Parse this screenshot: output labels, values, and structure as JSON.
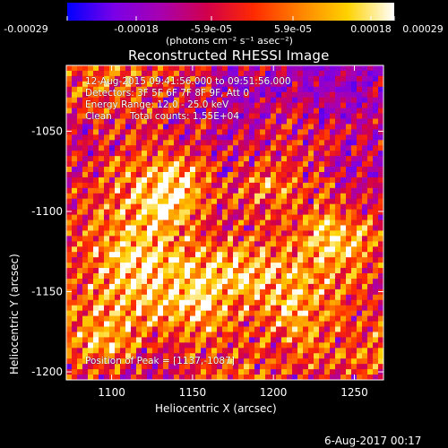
{
  "colorbar": {
    "colors": [
      "#0000ff",
      "#7a00e8",
      "#a800b0",
      "#d1004a",
      "#ff2a00",
      "#ff8400",
      "#ffd200",
      "#ffffff"
    ],
    "tick_labels": [
      "-0.00029",
      "-0.00018",
      "-5.9e-05",
      "5.9e-05",
      "0.00018",
      "0.00029"
    ],
    "units_label": "(photons cm⁻² s⁻¹ asec⁻²)"
  },
  "chart_data": {
    "type": "heatmap",
    "title": "Reconstructed RHESSI Image",
    "xlabel": "Heliocentric X (arcsec)",
    "ylabel": "Heliocentric Y (arcsec)",
    "xlim": [
      1072,
      1268
    ],
    "ylim": [
      -1205,
      -1009
    ],
    "xticks": [
      1100,
      1150,
      1200,
      1250
    ],
    "yticks": [
      -1050,
      -1100,
      -1150,
      -1200
    ],
    "annotations": [
      "12-Aug-2015 09:41:56.000 to 09:51:56.000",
      "Detectors: 3F 5F 6F 7F 8F 9F, Att 0",
      "Energy Range: 12.0 - 25.0 keV",
      "Clean",
      "Total counts: 1.55E+04"
    ],
    "peak_label": "Position of Peak = [1137,-1087]",
    "peak": [
      1137,
      -1087
    ],
    "grid": false
  },
  "footer": {
    "timestamp": "6-Aug-2017 00:17"
  }
}
